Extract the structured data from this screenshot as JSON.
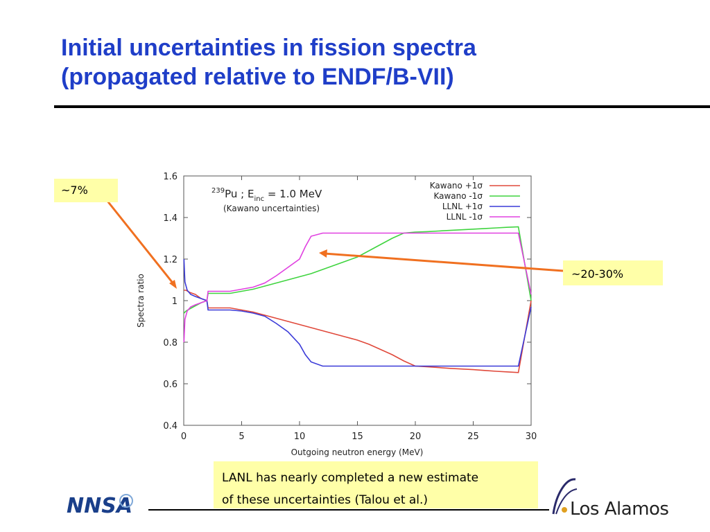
{
  "slide": {
    "title_line1": "Initial uncertainties in fission spectra",
    "title_line2": "(propagated relative to ENDF/B-VII)",
    "callout_left": "~7%",
    "callout_right": "~20-30%",
    "note_line1": "LANL has nearly completed a new estimate",
    "note_line2": "of these uncertainties (Talou et al.)",
    "logo_left": "NNSA",
    "logo_right": "Los Alamos"
  },
  "colors": {
    "title": "#1f3ec8",
    "callout_bg": "#ffffa8",
    "arrow": "#f07020"
  },
  "chart_data": {
    "type": "line",
    "annotation_line1_sup": "239",
    "annotation_line1_main": "Pu ; E",
    "annotation_line1_sub": "inc",
    "annotation_line1_tail": " = 1.0 MeV",
    "annotation_line2": "(Kawano uncertainties)",
    "xlabel": "Outgoing neutron energy (MeV)",
    "ylabel": "Spectra ratio",
    "xlim": [
      0,
      30
    ],
    "ylim": [
      0.4,
      1.6
    ],
    "xticks": [
      "0",
      "5",
      "10",
      "15",
      "20",
      "25",
      "30"
    ],
    "yticks": [
      "0.4",
      "0.6",
      "0.8",
      "1",
      "1.2",
      "1.4",
      "1.6"
    ],
    "legend_position": "top-right",
    "grid": false,
    "series": [
      {
        "name": "Kawano +1σ",
        "color": "#e0483a",
        "x": [
          0.02,
          0.2,
          0.5,
          1,
          1.5,
          2,
          2.1,
          3,
          4,
          5,
          6,
          7,
          8,
          9,
          10,
          11,
          12,
          13,
          14,
          15,
          16,
          17,
          18,
          19,
          20,
          21,
          22,
          23,
          24,
          25,
          26,
          27,
          28,
          28.9,
          30
        ],
        "y": [
          1.05,
          1.05,
          1.04,
          1.03,
          1.01,
          1.0,
          0.965,
          0.965,
          0.965,
          0.955,
          0.945,
          0.93,
          0.915,
          0.9,
          0.885,
          0.87,
          0.855,
          0.84,
          0.825,
          0.81,
          0.79,
          0.765,
          0.74,
          0.71,
          0.685,
          0.682,
          0.678,
          0.674,
          0.671,
          0.668,
          0.664,
          0.66,
          0.657,
          0.654,
          1.0
        ]
      },
      {
        "name": "Kawano -1σ",
        "color": "#3fd43f",
        "x": [
          0.02,
          0.2,
          0.5,
          1,
          1.5,
          2,
          2.1,
          3,
          4,
          5,
          6,
          7,
          8,
          9,
          10,
          11,
          12,
          13,
          14,
          15,
          16,
          17,
          18,
          19,
          20,
          21,
          22,
          23,
          24,
          25,
          26,
          27,
          28,
          28.9,
          30
        ],
        "y": [
          0.94,
          0.95,
          0.96,
          0.975,
          0.99,
          1.0,
          1.035,
          1.035,
          1.035,
          1.045,
          1.055,
          1.07,
          1.085,
          1.1,
          1.115,
          1.13,
          1.15,
          1.17,
          1.19,
          1.21,
          1.24,
          1.27,
          1.3,
          1.325,
          1.33,
          1.332,
          1.335,
          1.338,
          1.341,
          1.344,
          1.347,
          1.35,
          1.353,
          1.355,
          1.0
        ]
      },
      {
        "name": "LLNL +1σ",
        "color": "#3a3ad8",
        "x": [
          0.02,
          0.1,
          0.3,
          0.6,
          1,
          1.5,
          2,
          2.1,
          3,
          4,
          5,
          6,
          7,
          8,
          9,
          10,
          10.5,
          11,
          12,
          15,
          20,
          25,
          28.9,
          30
        ],
        "y": [
          1.2,
          1.09,
          1.05,
          1.03,
          1.02,
          1.01,
          1.0,
          0.955,
          0.955,
          0.955,
          0.95,
          0.94,
          0.925,
          0.89,
          0.85,
          0.79,
          0.74,
          0.705,
          0.685,
          0.685,
          0.685,
          0.685,
          0.685,
          0.97
        ]
      },
      {
        "name": "LLNL -1σ",
        "color": "#e040e0",
        "x": [
          0.02,
          0.1,
          0.3,
          0.6,
          1,
          1.5,
          2,
          2.1,
          3,
          4,
          5,
          6,
          7,
          8,
          9,
          10,
          10.5,
          11,
          12,
          15,
          20,
          25,
          28.9,
          30
        ],
        "y": [
          0.8,
          0.91,
          0.95,
          0.97,
          0.98,
          0.99,
          1.0,
          1.045,
          1.045,
          1.045,
          1.055,
          1.065,
          1.085,
          1.12,
          1.16,
          1.2,
          1.26,
          1.31,
          1.325,
          1.325,
          1.325,
          1.325,
          1.325,
          1.03
        ]
      }
    ]
  }
}
